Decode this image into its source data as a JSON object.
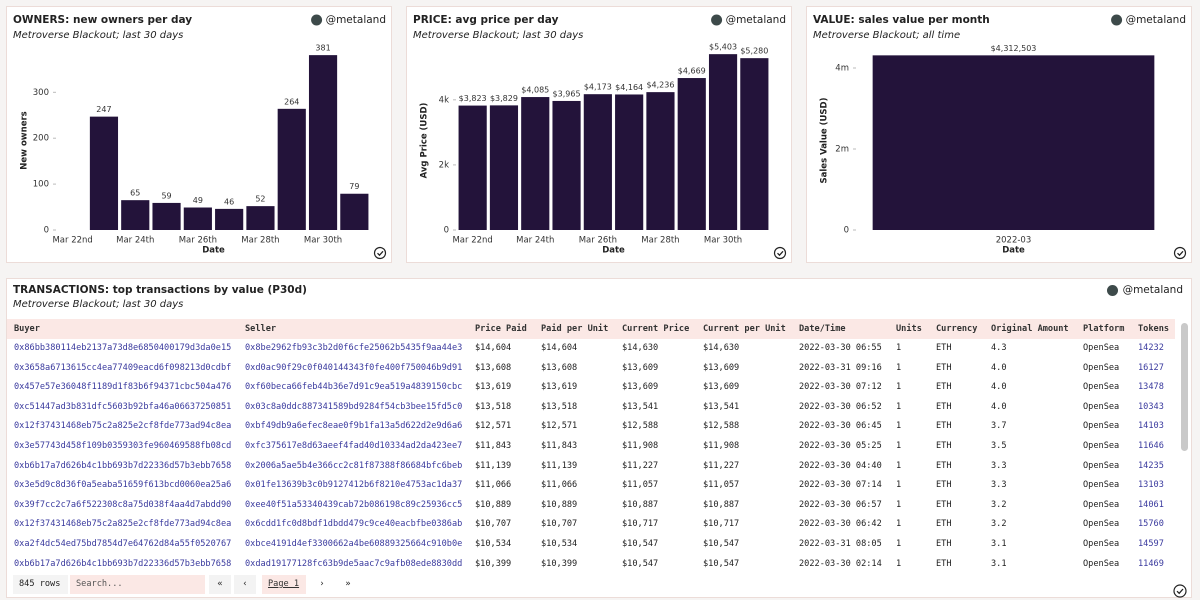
{
  "chart_data": [
    {
      "type": "bar",
      "title": "OWNERS: new owners per day",
      "subtitle": "Metroverse Blackout; last 30 days",
      "handle": "@metaland",
      "x_label": "Date",
      "y_label": "New owners",
      "categories": [
        "Mar 22nd",
        null,
        "Mar 24th",
        null,
        "Mar 26th",
        null,
        "Mar 28th",
        null,
        "Mar 30th",
        null
      ],
      "values": [
        null,
        247,
        65,
        59,
        49,
        46,
        52,
        264,
        381,
        79
      ],
      "color": "#23133a",
      "ylim": [
        0,
        390
      ],
      "yticks": [
        0,
        100,
        200,
        300
      ],
      "grid": false
    },
    {
      "type": "bar",
      "title": "PRICE: avg price per day",
      "subtitle": "Metroverse Blackout; last 30 days",
      "handle": "@metaland",
      "x_label": "Date",
      "y_label": "Avg Price (USD)",
      "categories": [
        "Mar 22nd",
        null,
        "Mar 24th",
        null,
        "Mar 26th",
        null,
        "Mar 28th",
        null,
        "Mar 30th",
        null
      ],
      "values": [
        3823,
        3829,
        4085,
        3965,
        4173,
        4164,
        4236,
        4669,
        5403,
        5280
      ],
      "value_labels": [
        "$3,823",
        "$3,829",
        "$4,085",
        "$3,965",
        "$4,173",
        "$4,164",
        "$4,236",
        "$4,669",
        "$5,403",
        "$5,280"
      ],
      "color": "#23133a",
      "ylim": [
        0,
        5500
      ],
      "yticks": [
        0,
        {
          "value": 2000,
          "label": "2k"
        },
        {
          "value": 4000,
          "label": "4k"
        }
      ],
      "grid": false
    },
    {
      "type": "bar",
      "title": "VALUE: sales value per month",
      "subtitle": "Metroverse Blackout; all time",
      "handle": "@metaland",
      "x_label": "Date",
      "y_label": "Sales Value (USD)",
      "categories": [
        "2022-03"
      ],
      "values": [
        4312503
      ],
      "value_labels": [
        "$4,312,503"
      ],
      "color": "#23133a",
      "ylim": [
        0,
        4420000
      ],
      "yticks": [
        0,
        {
          "value": 2000000,
          "label": "2m"
        },
        {
          "value": 4000000,
          "label": "4m"
        }
      ],
      "grid": false
    }
  ],
  "table": {
    "title": "TRANSACTIONS: top transactions by value (P30d)",
    "subtitle": "Metroverse Blackout; last 30 days",
    "handle": "@metaland",
    "columns": [
      "Buyer",
      "Seller",
      "Price Paid",
      "Paid per Unit",
      "Current Price",
      "Current per Unit",
      "Date/Time",
      "Units",
      "Currency",
      "Original Amount",
      "Platform",
      "Tokens"
    ],
    "rows": [
      [
        "0x86bb380114eb2137a73d8e6850400179d3da0e15",
        "0x8be2962fb93c3b2d0f6cfe25062b5435f9aa44e3",
        "$14,604",
        "$14,604",
        "$14,630",
        "$14,630",
        "2022-03-30 06:55",
        "1",
        "ETH",
        "4.3",
        "OpenSea",
        "14232"
      ],
      [
        "0x3658a6713615cc4ea77409eacd6f098213d0cdbf",
        "0xd0ac90f29c0f040144343f0fe400f750046b9d91",
        "$13,608",
        "$13,608",
        "$13,609",
        "$13,609",
        "2022-03-31 09:16",
        "1",
        "ETH",
        "4.0",
        "OpenSea",
        "16127"
      ],
      [
        "0x457e57e36048f1189d1f83b6f94371cbc504a476",
        "0xf60beca66feb44b36e7d91c9ea519a4839150cbc",
        "$13,619",
        "$13,619",
        "$13,609",
        "$13,609",
        "2022-03-30 07:12",
        "1",
        "ETH",
        "4.0",
        "OpenSea",
        "13478"
      ],
      [
        "0xc51447ad3b831dfc5603b92bfa46a06637250851",
        "0x03c8a0ddc887341589bd9284f54cb3bee15fd5c0",
        "$13,518",
        "$13,518",
        "$13,541",
        "$13,541",
        "2022-03-30 06:52",
        "1",
        "ETH",
        "4.0",
        "OpenSea",
        "10343"
      ],
      [
        "0x12f37431468eb75c2a825e2cf8fde773ad94c8ea",
        "0xbf49db9a6efec8eae0f9b1fa13a5d622d2e9d6a6",
        "$12,571",
        "$12,571",
        "$12,588",
        "$12,588",
        "2022-03-30 06:45",
        "1",
        "ETH",
        "3.7",
        "OpenSea",
        "14103"
      ],
      [
        "0x3e57743d458f109b0359303fe960469588fb08cd",
        "0xfc375617e8d63aeef4fad40d10334ad2da423ee7",
        "$11,843",
        "$11,843",
        "$11,908",
        "$11,908",
        "2022-03-30 05:25",
        "1",
        "ETH",
        "3.5",
        "OpenSea",
        "11646"
      ],
      [
        "0xb6b17a7d626b4c1bb693b7d22336d57b3ebb7658",
        "0x2006a5ae5b4e366cc2c81f87388f86684bfc6beb",
        "$11,139",
        "$11,139",
        "$11,227",
        "$11,227",
        "2022-03-30 04:40",
        "1",
        "ETH",
        "3.3",
        "OpenSea",
        "14235"
      ],
      [
        "0x3e5d9c8d36f0a5eaba51659f613bcd0060ea25a6",
        "0x01fe13639b3c0b9127412b6f8210e4753ac1da37",
        "$11,066",
        "$11,066",
        "$11,057",
        "$11,057",
        "2022-03-30 07:14",
        "1",
        "ETH",
        "3.3",
        "OpenSea",
        "13103"
      ],
      [
        "0x39f7cc2c7a6f522308c8a75d038f4aa4d7abdd90",
        "0xee40f51a53340439cab72b086198c89c25936cc5",
        "$10,889",
        "$10,889",
        "$10,887",
        "$10,887",
        "2022-03-30 06:57",
        "1",
        "ETH",
        "3.2",
        "OpenSea",
        "14061"
      ],
      [
        "0x12f37431468eb75c2a825e2cf8fde773ad94c8ea",
        "0x6cdd1fc0d8bdf1dbdd479c9ce40eacbfbe0386ab",
        "$10,707",
        "$10,707",
        "$10,717",
        "$10,717",
        "2022-03-30 06:42",
        "1",
        "ETH",
        "3.2",
        "OpenSea",
        "15760"
      ],
      [
        "0xa2f4dc54ed75bd7854d7e64762d84a55f0520767",
        "0xbce4191d4ef3300662a4be60889325664c910b0e",
        "$10,534",
        "$10,534",
        "$10,547",
        "$10,547",
        "2022-03-31 08:05",
        "1",
        "ETH",
        "3.1",
        "OpenSea",
        "14597"
      ],
      [
        "0xb6b17a7d626b4c1bb693b7d22336d57b3ebb7658",
        "0xdad19177128fc63b9de5aac7c9afb08ede8830dd",
        "$10,399",
        "$10,399",
        "$10,547",
        "$10,547",
        "2022-03-30 02:14",
        "1",
        "ETH",
        "3.1",
        "OpenSea",
        "11469"
      ]
    ],
    "footer": {
      "row_count": "845 rows",
      "search": "Search...",
      "page": "Page 1"
    }
  }
}
